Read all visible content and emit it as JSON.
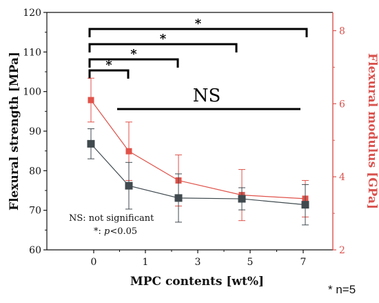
{
  "chart_data": {
    "type": "line",
    "x_tick_labels": [
      "0",
      "1",
      "3",
      "5",
      "7"
    ],
    "x": [
      0,
      1,
      3,
      5,
      7
    ],
    "xlabel": "MPC contents [wt%]",
    "left_axis": {
      "label": "Flexural strength [MPa]",
      "ylim": [
        60,
        120
      ],
      "ticks": [
        "60",
        "70",
        "80",
        "90",
        "100",
        "110",
        "120"
      ],
      "color": "#111111"
    },
    "right_axis": {
      "label": "Flexural modulus [GPa]",
      "ylim": [
        2,
        8.5
      ],
      "ticks": [
        "2",
        "4",
        "6",
        "8"
      ],
      "color": "#d9534f"
    },
    "series": [
      {
        "axis": "left",
        "color": "#404a4f",
        "values": [
          86.8,
          76.2,
          73.1,
          72.9,
          71.4
        ],
        "errors": [
          3.8,
          5.9,
          6.1,
          2.8,
          5.1
        ]
      },
      {
        "axis": "right",
        "color": "#e0524a",
        "values": [
          6.1,
          4.7,
          3.9,
          3.5,
          3.4
        ],
        "errors": [
          0.6,
          0.8,
          0.7,
          0.7,
          0.5
        ]
      }
    ],
    "significance": [
      {
        "from": 0,
        "to": 1,
        "label": "*"
      },
      {
        "from": 0,
        "to": 3,
        "label": "*"
      },
      {
        "from": 0,
        "to": 5,
        "label": "*"
      },
      {
        "from": 0,
        "to": 7,
        "label": "*"
      }
    ],
    "ns_label": "NS",
    "annotations": {
      "ns_note": "NS: not significant",
      "p_prefix": "*: ",
      "p_italic": "p",
      "p_suffix": "<0.05",
      "n_note": "* n=5"
    }
  }
}
